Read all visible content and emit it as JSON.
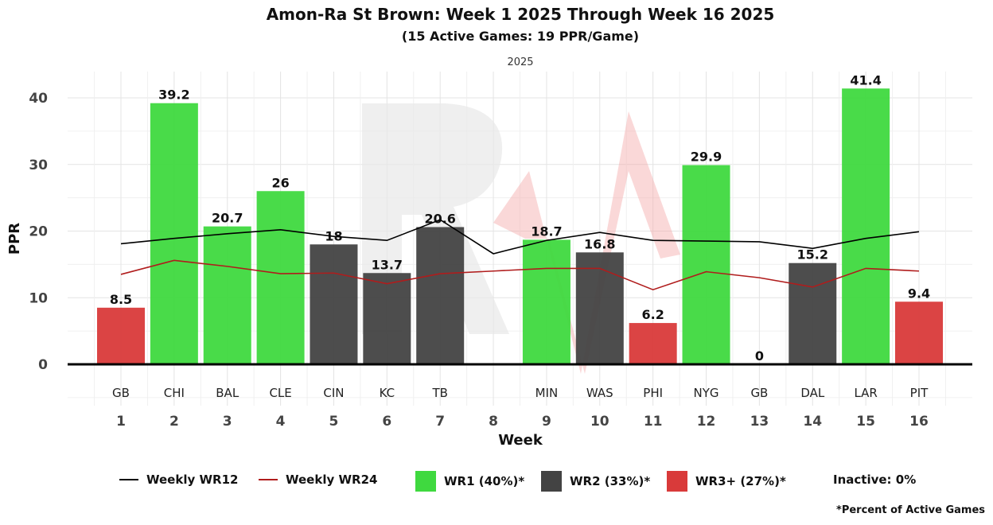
{
  "chart_data": {
    "type": "bar",
    "title": "Amon-Ra St Brown: Week 1 2025 Through Week 16 2025",
    "subtitle": "(15 Active Games: 19 PPR/Game)",
    "facet_label": "2025",
    "xlabel": "Week",
    "ylabel": "PPR",
    "ylim": [
      -6.5,
      44
    ],
    "yticks": [
      0,
      10,
      20,
      30,
      40
    ],
    "grid": true,
    "weeks": [
      1,
      2,
      3,
      4,
      5,
      6,
      7,
      8,
      9,
      10,
      11,
      12,
      13,
      14,
      15,
      16
    ],
    "opponents": [
      "GB",
      "CHI",
      "BAL",
      "CLE",
      "CIN",
      "KC",
      "TB",
      "",
      "MIN",
      "WAS",
      "PHI",
      "NYG",
      "GB",
      "DAL",
      "LAR",
      "PIT"
    ],
    "values": [
      8.5,
      39.2,
      20.7,
      26,
      18,
      13.7,
      20.6,
      null,
      18.7,
      16.8,
      6.2,
      29.9,
      0,
      15.2,
      41.4,
      9.4
    ],
    "tiers": [
      "WR3+",
      "WR1",
      "WR1",
      "WR1",
      "WR2",
      "WR2",
      "WR2",
      null,
      "WR1",
      "WR2",
      "WR3+",
      "WR1",
      "WR3+",
      "WR2",
      "WR1",
      "WR3+"
    ],
    "series": [
      {
        "name": "Weekly WR12",
        "color": "#000000",
        "values": [
          18.1,
          18.9,
          19.6,
          20.2,
          19.2,
          18.6,
          21.7,
          16.6,
          18.6,
          19.8,
          18.6,
          18.5,
          18.4,
          17.4,
          18.9,
          19.9
        ]
      },
      {
        "name": "Weekly WR24",
        "color": "#b01c1c",
        "values": [
          13.5,
          15.6,
          14.7,
          13.6,
          13.7,
          12.1,
          13.6,
          14.0,
          14.4,
          14.4,
          11.2,
          13.9,
          13.0,
          11.6,
          14.4,
          14.0
        ]
      }
    ],
    "tier_colors": {
      "WR1": "#3fd93f",
      "WR2": "#434343",
      "WR3+": "#d93a3a"
    },
    "legend": {
      "placement": "bottom",
      "items": [
        "Weekly WR12",
        "Weekly WR24",
        "WR1 (40%)*",
        "WR2 (33%)*",
        "WR3+ (27%)*",
        "Inactive: 0%"
      ]
    },
    "footnote": "*Percent of Active Games"
  }
}
